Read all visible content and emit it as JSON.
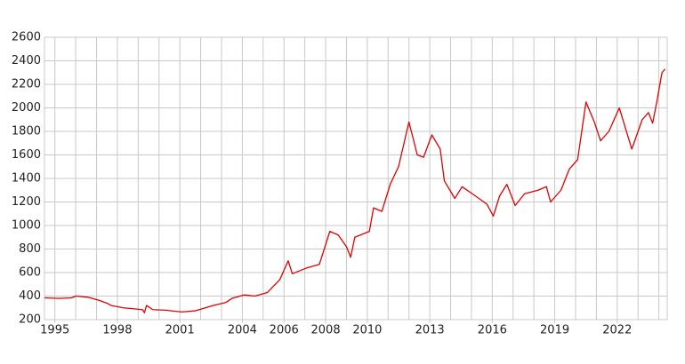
{
  "chart_data": {
    "type": "line",
    "x": [
      1994.5,
      1995.2,
      1995.8,
      1996.0,
      1996.6,
      1997.1,
      1997.5,
      1997.7,
      1998.3,
      1999.2,
      1999.3,
      1999.4,
      1999.7,
      2000.3,
      2001.1,
      2001.75,
      2002.6,
      2003.2,
      2003.5,
      2004.1,
      2004.6,
      2005.2,
      2005.8,
      2006.2,
      2006.4,
      2007.1,
      2007.7,
      2008.2,
      2008.6,
      2009.0,
      2009.2,
      2009.4,
      2010.1,
      2010.3,
      2010.7,
      2011.1,
      2011.5,
      2012.0,
      2012.4,
      2012.7,
      2013.1,
      2013.5,
      2013.7,
      2014.2,
      2014.55,
      2015.2,
      2015.75,
      2016.05,
      2016.35,
      2016.7,
      2017.1,
      2017.55,
      2018.2,
      2018.6,
      2018.8,
      2019.3,
      2019.7,
      2020.1,
      2020.5,
      2020.9,
      2021.2,
      2021.6,
      2022.1,
      2022.7,
      2023.2,
      2023.5,
      2023.7,
      2023.9,
      2024.15,
      2024.3
    ],
    "series": [
      {
        "color": "#e00000",
        "values": [
          385,
          380,
          385,
          400,
          390,
          365,
          340,
          320,
          300,
          285,
          258,
          320,
          285,
          280,
          265,
          275,
          320,
          345,
          380,
          410,
          400,
          430,
          540,
          700,
          590,
          640,
          670,
          950,
          920,
          820,
          730,
          900,
          950,
          1150,
          1120,
          1350,
          1500,
          1880,
          1600,
          1580,
          1770,
          1650,
          1380,
          1230,
          1330,
          1250,
          1180,
          1080,
          1250,
          1350,
          1170,
          1270,
          1300,
          1330,
          1200,
          1300,
          1480,
          1560,
          2050,
          1880,
          1720,
          1800,
          2000,
          1650,
          1900,
          1960,
          1870,
          2050,
          2300,
          2330
        ]
      }
    ],
    "xlim": [
      1994.5,
      2024.4
    ],
    "xticks": [
      1995,
      1998,
      2001,
      2004,
      2006,
      2008,
      2010,
      2013,
      2016,
      2019,
      2022
    ],
    "xgrid": [
      1995,
      1996,
      1997,
      1998,
      1999,
      2000,
      2001,
      2002,
      2003,
      2004,
      2005,
      2006,
      2007,
      2008,
      2009,
      2010,
      2011,
      2012,
      2013,
      2014,
      2015,
      2016,
      2017,
      2018,
      2019,
      2020,
      2021,
      2022,
      2023,
      2024
    ],
    "ylim": [
      200,
      2600
    ],
    "yticks": [
      200,
      400,
      600,
      800,
      1000,
      1200,
      1400,
      1600,
      1800,
      2000,
      2200,
      2400,
      2600
    ],
    "grid": true
  }
}
